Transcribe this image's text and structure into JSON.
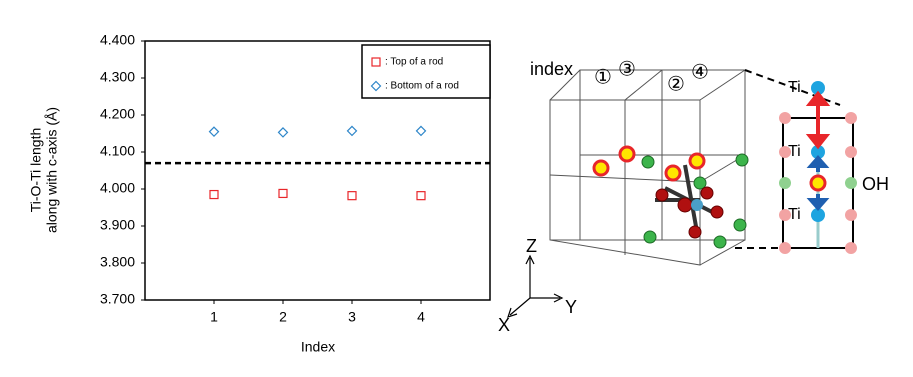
{
  "chart_data": {
    "type": "scatter",
    "ylabel": [
      "Ti-O-Ti length",
      "along with c-axis (Å)"
    ],
    "xlabel": "Index",
    "x": [
      1,
      2,
      3,
      4
    ],
    "xlim": [
      0,
      5
    ],
    "xticks": [
      1,
      2,
      3,
      4
    ],
    "ylim": [
      3.7,
      4.4
    ],
    "yticks": [
      {
        "value": 3.7,
        "label": "3.700"
      },
      {
        "value": 3.8,
        "label": "3.800"
      },
      {
        "value": 3.9,
        "label": "3.900"
      },
      {
        "value": 4.0,
        "label": "4.000"
      },
      {
        "value": 4.1,
        "label": "4.100"
      },
      {
        "value": 4.2,
        "label": "4.200"
      },
      {
        "value": 4.3,
        "label": "4.300"
      },
      {
        "value": 4.4,
        "label": "4.400"
      }
    ],
    "hline": 4.07,
    "series": [
      {
        "name": ": Top of a rod",
        "color": "#e8262a",
        "marker": "square",
        "values": [
          3.985,
          3.988,
          3.982,
          3.982
        ]
      },
      {
        "name": ": Bottom of a rod",
        "color": "#2e86c9",
        "marker": "diamond",
        "values": [
          4.155,
          4.153,
          4.157,
          4.157
        ]
      }
    ]
  },
  "diagram": {
    "index_label": "index",
    "site_labels": [
      "①",
      "③",
      "②",
      "④"
    ],
    "axes": [
      "Z",
      "Y",
      "X"
    ],
    "atom_labels": [
      "Ti",
      "Ti",
      "Ti",
      "OH"
    ]
  }
}
